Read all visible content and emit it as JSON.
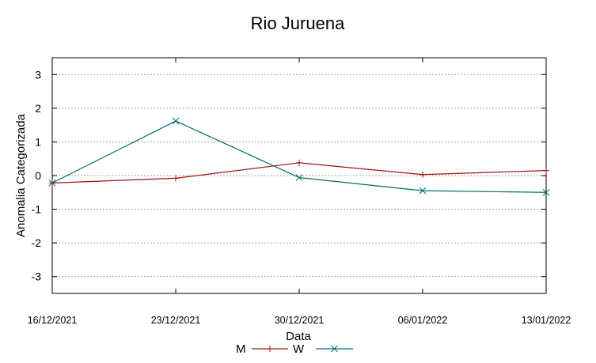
{
  "chart_data": {
    "type": "line",
    "title": "Rio Juruena",
    "xlabel": "Data",
    "ylabel": "Anomalia Categorizada",
    "categories": [
      "16/12/2021",
      "23/12/2021",
      "30/12/2021",
      "06/01/2022",
      "13/01/2022"
    ],
    "ylim": [
      -3.5,
      3.5
    ],
    "yticks": [
      3,
      2,
      1,
      0,
      -1,
      -2,
      -3
    ],
    "grid": true,
    "legend_position": "bottom-center",
    "series": [
      {
        "name": "M",
        "color": "#a01010",
        "marker": "plus",
        "values": [
          -0.22,
          -0.08,
          0.38,
          0.03,
          0.15
        ]
      },
      {
        "name": "W",
        "color": "#006e6e",
        "marker": "x",
        "values": [
          -0.22,
          1.62,
          -0.06,
          -0.45,
          -0.5
        ]
      }
    ]
  }
}
